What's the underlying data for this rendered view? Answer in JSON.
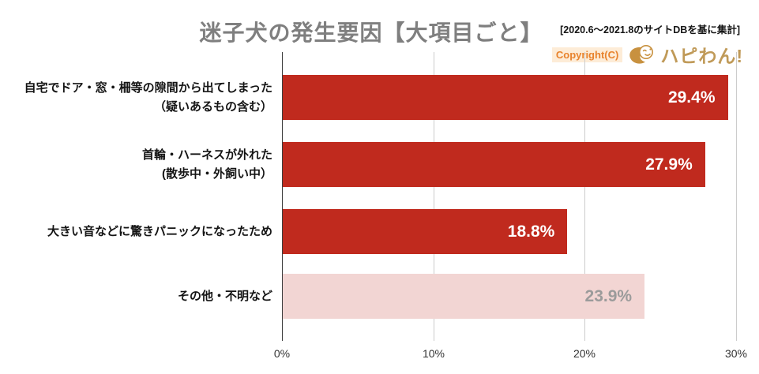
{
  "title": "迷子犬の発生要因【大項目ごと】",
  "source_note": "[2020.6〜2021.8のサイトDBを基に集計]",
  "copyright": {
    "label": "Copyright(C)",
    "brand": "ハピわん!",
    "brand_color": "#c09a58",
    "label_color": "#e8832d"
  },
  "chart_data": {
    "type": "bar",
    "orientation": "horizontal",
    "title": "迷子犬の発生要因【大項目ごと】",
    "categories": [
      [
        "自宅でドア・窓・柵等の隙間から出てしまった",
        "（疑いあるもの含む）"
      ],
      [
        "首輪・ハーネスが外れた",
        "(散歩中・外飼い中）"
      ],
      [
        "大きい音などに驚きパニックになったため"
      ],
      [
        "その他・不明など"
      ]
    ],
    "values": [
      29.4,
      27.9,
      18.8,
      23.9
    ],
    "value_labels": [
      "29.4%",
      "27.9%",
      "18.8%",
      "23.9%"
    ],
    "bar_colors": [
      "#c02a1e",
      "#c02a1e",
      "#c02a1e",
      "#f2d5d3"
    ],
    "value_label_colors": [
      "#ffffff",
      "#ffffff",
      "#ffffff",
      "#9b9b9b"
    ],
    "x_tick_labels": [
      "0%",
      "10%",
      "20%",
      "30%"
    ],
    "xlim": [
      0,
      30
    ],
    "xlabel": "",
    "ylabel": "",
    "gridlines": true,
    "axis_color": "#3c3c3c",
    "grid_color": "#cccccc"
  }
}
